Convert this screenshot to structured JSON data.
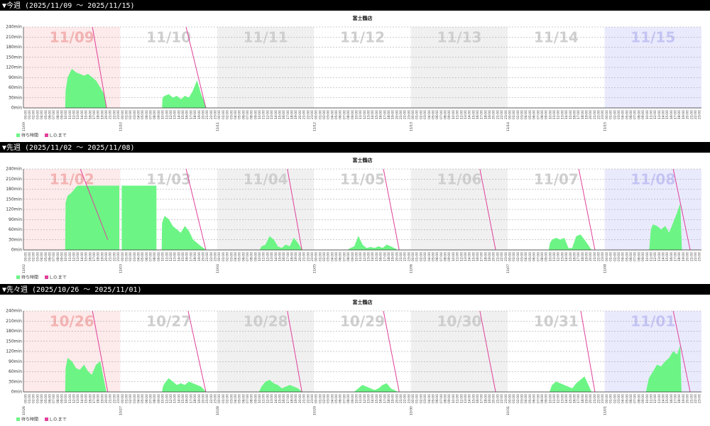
{
  "sections": [
    {
      "header": "▼今週 (2025/11/09 〜 2025/11/15)"
    },
    {
      "header": "▼先週 (2025/11/02 〜 2025/11/08)"
    },
    {
      "header": "▼先々週 (2025/10/26 〜 2025/11/01)"
    }
  ],
  "chart_data": [
    {
      "type": "area",
      "title": "富士鶴店",
      "xlim": [
        0,
        168
      ],
      "ylim": [
        0,
        240
      ],
      "grid": true,
      "legend": "bottom-left",
      "yticks": [
        {
          "value": 0,
          "label": "0min"
        },
        {
          "value": 30,
          "label": "30min"
        },
        {
          "value": 60,
          "label": "60min"
        },
        {
          "value": 90,
          "label": "90min"
        },
        {
          "value": 120,
          "label": "120min"
        },
        {
          "value": 150,
          "label": "150min"
        },
        {
          "value": 180,
          "label": "180min"
        },
        {
          "value": 210,
          "label": "210min"
        },
        {
          "value": 240,
          "label": "240min"
        }
      ],
      "days": [
        "11/09",
        "11/10",
        "11/11",
        "11/12",
        "11/13",
        "11/14",
        "11/15"
      ],
      "hour_labels": [
        "00:00",
        "01:00",
        "02:00",
        "03:00",
        "04:00",
        "05:00",
        "06:00",
        "07:00",
        "08:00",
        "09:00",
        "10:00",
        "11:00",
        "12:00",
        "13:00",
        "14:00",
        "15:00",
        "16:00",
        "17:00",
        "18:00",
        "19:00",
        "20:00",
        "21:00",
        "22:00",
        "23:00"
      ],
      "series": [
        {
          "name": "待ち時間",
          "type": "area",
          "color": "#6cf585",
          "x": [
            10.4,
            10.5,
            11,
            12,
            13,
            14,
            15,
            16,
            17,
            18,
            19,
            20,
            20.5,
            null,
            34.4,
            34.5,
            35,
            36,
            37,
            38,
            39,
            40,
            41,
            42,
            43,
            44,
            45,
            45.3
          ],
          "values": [
            0,
            50,
            90,
            115,
            105,
            100,
            95,
            100,
            90,
            80,
            60,
            40,
            0,
            null,
            0,
            30,
            35,
            40,
            30,
            35,
            25,
            35,
            30,
            50,
            80,
            40,
            10,
            0
          ]
        },
        {
          "name": "L.O.まで",
          "type": "line",
          "color": "#e0409a",
          "x": [
            17.1,
            20.6,
            null,
            40.3,
            45.2
          ],
          "values": [
            240,
            0,
            null,
            240,
            0
          ]
        }
      ]
    },
    {
      "type": "area",
      "title": "富士鶴店",
      "xlim": [
        0,
        168
      ],
      "ylim": [
        0,
        240
      ],
      "grid": true,
      "legend": "bottom-left",
      "yticks": [
        {
          "value": 0,
          "label": "0min"
        },
        {
          "value": 30,
          "label": "30min"
        },
        {
          "value": 60,
          "label": "60min"
        },
        {
          "value": 90,
          "label": "90min"
        },
        {
          "value": 120,
          "label": "120min"
        },
        {
          "value": 150,
          "label": "150min"
        },
        {
          "value": 180,
          "label": "180min"
        },
        {
          "value": 210,
          "label": "210min"
        },
        {
          "value": 240,
          "label": "240min"
        }
      ],
      "days": [
        "11/02",
        "11/03",
        "11/04",
        "11/05",
        "11/06",
        "11/07",
        "11/08"
      ],
      "hour_labels": [
        "00:00",
        "01:00",
        "02:00",
        "03:00",
        "04:00",
        "05:00",
        "06:00",
        "07:00",
        "08:00",
        "09:00",
        "10:00",
        "11:00",
        "12:00",
        "13:00",
        "14:00",
        "15:00",
        "16:00",
        "17:00",
        "18:00",
        "19:00",
        "20:00",
        "21:00",
        "22:00",
        "23:00"
      ],
      "series": [
        {
          "name": "待ち時間",
          "type": "area",
          "color": "#6cf585",
          "x": [
            10.4,
            10.5,
            11,
            12,
            13,
            13.5,
            23.7,
            23.7,
            null,
            24.4,
            24.4,
            32.9,
            32.9,
            null,
            34.3,
            34.4,
            35,
            36,
            37,
            38,
            39,
            40,
            41,
            42,
            43,
            44,
            45.2,
            null,
            58.6,
            59,
            60,
            61,
            62,
            63,
            64,
            65,
            66,
            67,
            68,
            69,
            null,
            80.4,
            81,
            82,
            83,
            84,
            85,
            86,
            87,
            88,
            89,
            90,
            91,
            92.7,
            null,
            130.2,
            130.5,
            131,
            132,
            133,
            134,
            135,
            136,
            137,
            138,
            139,
            140.7,
            null,
            155.1,
            155.5,
            156,
            157,
            158,
            159,
            160,
            161,
            162,
            162.7,
            163.1
          ],
          "values": [
            0,
            140,
            160,
            170,
            185,
            190,
            190,
            0,
            null,
            0,
            190,
            190,
            0,
            null,
            0,
            80,
            100,
            90,
            70,
            60,
            50,
            70,
            55,
            30,
            20,
            10,
            0,
            null,
            0,
            10,
            15,
            40,
            30,
            10,
            5,
            15,
            10,
            35,
            20,
            0,
            null,
            0,
            5,
            10,
            40,
            15,
            5,
            8,
            5,
            10,
            5,
            15,
            10,
            0,
            null,
            0,
            20,
            30,
            35,
            30,
            35,
            5,
            5,
            40,
            45,
            30,
            0,
            null,
            0,
            60,
            75,
            70,
            60,
            70,
            50,
            80,
            110,
            135,
            0
          ]
        },
        {
          "name": "L.O.まで",
          "type": "line",
          "color": "#e0409a",
          "x": [
            14.1,
            20.9,
            null,
            40.3,
            45.2,
            null,
            65.4,
            69.0,
            null,
            89.2,
            93.1,
            null,
            113.1,
            117.0,
            null,
            137.6,
            141.6,
            null,
            161.0,
            165.2
          ],
          "values": [
            240,
            30,
            null,
            240,
            0,
            null,
            240,
            0,
            null,
            240,
            0,
            null,
            240,
            0,
            null,
            240,
            0,
            null,
            240,
            0
          ]
        }
      ]
    },
    {
      "type": "area",
      "title": "富士鶴店",
      "xlim": [
        0,
        168
      ],
      "ylim": [
        0,
        240
      ],
      "grid": true,
      "legend": "bottom-left",
      "yticks": [
        {
          "value": 0,
          "label": "0min"
        },
        {
          "value": 30,
          "label": "30min"
        },
        {
          "value": 60,
          "label": "60min"
        },
        {
          "value": 90,
          "label": "90min"
        },
        {
          "value": 120,
          "label": "120min"
        },
        {
          "value": 150,
          "label": "150min"
        },
        {
          "value": 180,
          "label": "180min"
        },
        {
          "value": 210,
          "label": "210min"
        },
        {
          "value": 240,
          "label": "240min"
        }
      ],
      "days": [
        "10/26",
        "10/27",
        "10/28",
        "10/29",
        "10/30",
        "10/31",
        "11/01"
      ],
      "hour_labels": [
        "00:00",
        "01:00",
        "02:00",
        "03:00",
        "04:00",
        "05:00",
        "06:00",
        "07:00",
        "08:00",
        "09:00",
        "10:00",
        "11:00",
        "12:00",
        "13:00",
        "14:00",
        "15:00",
        "16:00",
        "17:00",
        "18:00",
        "19:00",
        "20:00",
        "21:00",
        "22:00",
        "23:00"
      ],
      "series": [
        {
          "name": "待ち時間",
          "type": "area",
          "color": "#6cf585",
          "x": [
            10.4,
            10.5,
            11,
            12,
            13,
            14,
            15,
            16,
            17,
            18,
            19,
            19.5,
            20.5,
            null,
            34.4,
            34.6,
            35,
            36,
            37,
            38,
            39,
            40,
            41,
            42,
            43,
            44,
            45.2,
            null,
            58.4,
            59,
            60,
            61,
            62,
            63,
            64,
            65,
            66,
            67,
            68,
            69,
            null,
            82,
            83,
            84,
            85,
            86,
            87,
            88,
            89,
            90,
            91,
            92.7,
            null,
            130.4,
            131,
            132,
            133,
            134,
            135,
            136,
            137,
            138,
            139,
            140.7,
            null,
            154.3,
            155,
            156,
            157,
            158,
            159,
            160,
            161,
            162,
            162.7,
            163
          ],
          "values": [
            0,
            70,
            100,
            90,
            70,
            65,
            80,
            60,
            50,
            80,
            90,
            60,
            0,
            null,
            0,
            15,
            25,
            40,
            30,
            20,
            25,
            20,
            30,
            25,
            20,
            15,
            0,
            null,
            0,
            15,
            30,
            35,
            25,
            20,
            10,
            15,
            20,
            15,
            10,
            0,
            null,
            0,
            10,
            20,
            15,
            10,
            5,
            10,
            20,
            25,
            10,
            0,
            null,
            0,
            20,
            30,
            25,
            20,
            15,
            10,
            25,
            35,
            45,
            0,
            null,
            0,
            40,
            60,
            80,
            75,
            90,
            100,
            120,
            110,
            135,
            0
          ]
        },
        {
          "name": "L.O.まで",
          "type": "line",
          "color": "#e0409a",
          "x": [
            17.1,
            20.9,
            null,
            40.8,
            45.2,
            null,
            65.4,
            69.0,
            null,
            89.2,
            93.1,
            null,
            113.1,
            117.0,
            null,
            138.1,
            141.6,
            null,
            161.0,
            165.2
          ],
          "values": [
            240,
            0,
            null,
            240,
            0,
            null,
            240,
            0,
            null,
            240,
            0,
            null,
            240,
            0,
            null,
            240,
            0,
            null,
            240,
            0
          ]
        }
      ]
    }
  ]
}
